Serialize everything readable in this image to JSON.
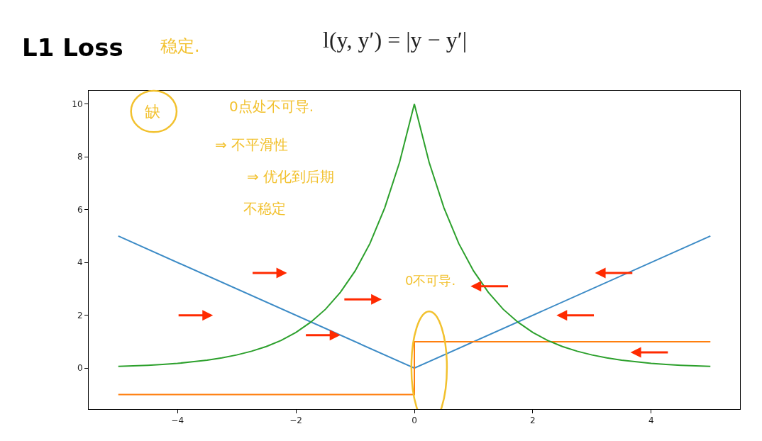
{
  "chart_data": {
    "type": "line",
    "title": "L1 Loss",
    "subtitle": "l(y, y′) = |y − y′|",
    "annotations": [
      "稳定.",
      "缺",
      "0点处不可导.",
      "⇒ 不平滑性",
      "⇒ 优化到后期",
      "不稳定",
      "0不可导."
    ],
    "series": [
      {
        "color": "#3c8bc6",
        "x": [
          -5,
          0,
          5
        ],
        "values": [
          5,
          0,
          5
        ]
      },
      {
        "color": "#ff7f0e",
        "type": "step",
        "x": [
          -5,
          0,
          5
        ],
        "values": [
          -1,
          1,
          1
        ]
      },
      {
        "color": "#2ca02c",
        "x": [
          -5,
          -4.75,
          -4.5,
          -4.25,
          -4,
          -3.75,
          -3.5,
          -3.25,
          -3,
          -2.75,
          -2.5,
          -2.25,
          -2,
          -1.75,
          -1.5,
          -1.25,
          -1,
          -0.75,
          -0.5,
          -0.25,
          0,
          0.25,
          0.5,
          0.75,
          1,
          1.25,
          1.5,
          1.75,
          2,
          2.25,
          2.5,
          2.75,
          3,
          3.25,
          3.5,
          3.75,
          4,
          4.25,
          4.5,
          4.75,
          5
        ],
        "values": [
          0.07,
          0.09,
          0.11,
          0.14,
          0.18,
          0.24,
          0.3,
          0.39,
          0.5,
          0.64,
          0.82,
          1.05,
          1.35,
          1.74,
          2.23,
          2.87,
          3.68,
          4.72,
          6.07,
          7.79,
          10,
          7.79,
          6.07,
          4.72,
          3.68,
          2.87,
          2.23,
          1.74,
          1.35,
          1.05,
          0.82,
          0.64,
          0.5,
          0.39,
          0.3,
          0.24,
          0.18,
          0.14,
          0.11,
          0.09,
          0.07
        ]
      }
    ],
    "xlim": [
      -5.5,
      5.5
    ],
    "xticks": [
      {
        "value": -4,
        "label": "−4"
      },
      {
        "value": -2,
        "label": "−2"
      },
      0,
      2,
      4
    ],
    "ylim": [
      -1.55,
      10.5
    ],
    "yticks": [
      0,
      2,
      4,
      6,
      8,
      10
    ],
    "marker": "none",
    "line_style": "solid"
  }
}
